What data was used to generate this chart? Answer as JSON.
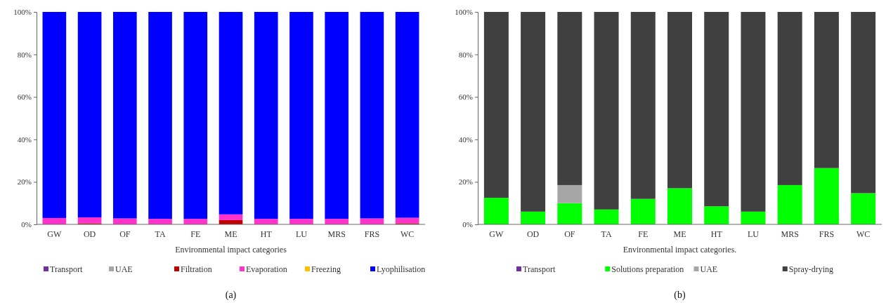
{
  "chart_data": [
    {
      "type": "bar",
      "stacked": true,
      "xlabel": "Environmental  impact categories",
      "categories": [
        "GW",
        "OD",
        "OF",
        "TA",
        "FE",
        "ME",
        "HT",
        "LU",
        "MRS",
        "FRS",
        "WC"
      ],
      "ylim": [
        0,
        100
      ],
      "yticks": [
        {
          "value": 0,
          "label": "0%"
        },
        {
          "value": 20,
          "label": "20%"
        },
        {
          "value": 40,
          "label": "40%"
        },
        {
          "value": 60,
          "label": "60%"
        },
        {
          "value": 80,
          "label": "80%"
        },
        {
          "value": 100,
          "label": "100%"
        }
      ],
      "grid": false,
      "legend": "bottom",
      "annotations": [
        "(a)"
      ],
      "series": [
        {
          "name": "Transport",
          "color": "#7030a0",
          "values": [
            0,
            0,
            0,
            0,
            0,
            0,
            0,
            0,
            0,
            0,
            0
          ]
        },
        {
          "name": "UAE",
          "color": "#a6a6a6",
          "values": [
            0,
            0,
            0,
            0,
            0,
            0,
            0,
            0,
            0,
            0,
            0
          ]
        },
        {
          "name": "Filtration",
          "color": "#c00000",
          "values": [
            0,
            0.5,
            0,
            0,
            0,
            2,
            0,
            0,
            0,
            0,
            0.5
          ]
        },
        {
          "name": "Evaporation",
          "color": "#ff33cc",
          "values": [
            3,
            2.8,
            2.8,
            2.6,
            2.6,
            2.7,
            2.6,
            2.6,
            2.6,
            2.8,
            2.6
          ]
        },
        {
          "name": "Freezing",
          "color": "#ffc000",
          "values": [
            0,
            0,
            0,
            0,
            0,
            0,
            0,
            0,
            0,
            0,
            0
          ]
        },
        {
          "name": "Lyophilisation",
          "color": "#0000ff",
          "values": [
            97,
            96.7,
            97.2,
            97.4,
            97.4,
            95.3,
            97.4,
            97.4,
            97.4,
            97.2,
            96.9
          ]
        }
      ]
    },
    {
      "type": "bar",
      "stacked": true,
      "xlabel": "Environmental  impact categories.",
      "categories": [
        "GW",
        "OD",
        "OF",
        "TA",
        "FE",
        "ME",
        "HT",
        "LU",
        "MRS",
        "FRS",
        "WC"
      ],
      "ylim": [
        0,
        100
      ],
      "yticks": [
        {
          "value": 0,
          "label": "0%"
        },
        {
          "value": 20,
          "label": "20%"
        },
        {
          "value": 40,
          "label": "40%"
        },
        {
          "value": 60,
          "label": "60%"
        },
        {
          "value": 80,
          "label": "80%"
        },
        {
          "value": 100,
          "label": "100%"
        }
      ],
      "grid": false,
      "legend": "bottom",
      "annotations": [
        "(b)"
      ],
      "series": [
        {
          "name": "Transport",
          "color": "#7030a0",
          "values": [
            0,
            0,
            0,
            0,
            0,
            0,
            0,
            0,
            0,
            0,
            0
          ]
        },
        {
          "name": "Solutions preparation",
          "color": "#00ff00",
          "values": [
            12.5,
            6,
            10,
            7,
            12,
            17,
            8.5,
            6,
            18.5,
            26.5,
            14.7
          ]
        },
        {
          "name": "UAE",
          "color": "#a6a6a6",
          "values": [
            0,
            0,
            8.5,
            0,
            0,
            0,
            0,
            0,
            0,
            0,
            0
          ]
        },
        {
          "name": "Spray-drying",
          "color": "#404040",
          "values": [
            87.5,
            94,
            81.5,
            93,
            88,
            83,
            91.5,
            94,
            81.5,
            73.5,
            85.3
          ]
        }
      ]
    }
  ]
}
